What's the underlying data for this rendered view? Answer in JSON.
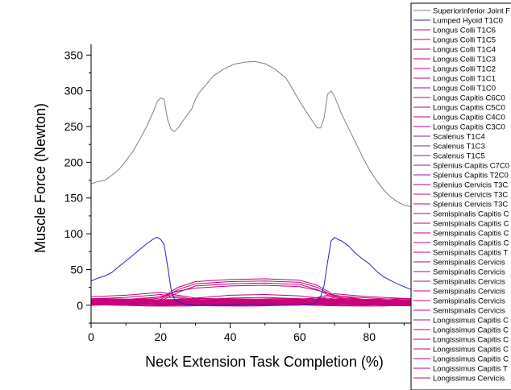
{
  "chart_data": {
    "type": "line",
    "xlabel": "Neck Extension Task Completion (%)",
    "ylabel": "Muscle Force (Newton)",
    "xlim": [
      0,
      92
    ],
    "ylim": [
      -25,
      365
    ],
    "xticks": [
      0,
      20,
      40,
      60,
      80
    ],
    "yticks": [
      0,
      50,
      100,
      150,
      200,
      250,
      300,
      350
    ],
    "grid": false,
    "legend_position": "right (clipped)",
    "colors": {
      "gray": "#808080",
      "blue": "#2020d0",
      "magenta": "#c8007a",
      "purple": "#7a2a8a"
    },
    "series": [
      {
        "name": "Superiorinferior Joint F",
        "color": "#808080",
        "x": [
          0,
          2,
          4,
          6,
          8,
          10,
          12,
          14,
          16,
          18,
          19,
          20,
          21,
          22,
          23,
          24,
          25,
          27,
          29,
          30,
          31,
          33,
          35,
          38,
          41,
          44,
          47,
          50,
          53,
          56,
          57,
          58,
          60,
          62,
          64,
          65,
          66,
          67,
          68,
          69,
          70,
          71,
          72,
          74,
          76,
          78,
          80,
          82,
          84,
          86,
          88,
          90,
          92
        ],
        "y": [
          170,
          173,
          175,
          182,
          190,
          202,
          215,
          232,
          250,
          272,
          285,
          290,
          288,
          260,
          246,
          243,
          248,
          262,
          275,
          288,
          297,
          308,
          320,
          330,
          337,
          340,
          341,
          338,
          330,
          318,
          310,
          302,
          285,
          270,
          255,
          248,
          248,
          262,
          295,
          300,
          292,
          280,
          268,
          248,
          228,
          208,
          190,
          175,
          162,
          152,
          145,
          140,
          138
        ]
      },
      {
        "name": "Lumped Hyoid T1C0",
        "color": "#2020d0",
        "x": [
          0,
          2,
          4,
          6,
          8,
          10,
          12,
          14,
          16,
          18,
          19,
          20,
          21,
          22,
          23,
          24,
          26,
          28,
          30,
          40,
          50,
          60,
          64,
          65,
          66,
          67,
          68,
          69,
          70,
          71,
          72,
          74,
          76,
          78,
          80,
          82,
          84,
          86,
          88,
          90,
          92
        ],
        "y": [
          34,
          38,
          41,
          46,
          54,
          62,
          70,
          78,
          86,
          93,
          95,
          92,
          85,
          55,
          22,
          8,
          3,
          1,
          0,
          0,
          0,
          0,
          2,
          5,
          12,
          28,
          60,
          90,
          95,
          92,
          90,
          83,
          73,
          65,
          58,
          48,
          40,
          35,
          30,
          26,
          22
        ]
      },
      {
        "name": "Longus Colli T1C6",
        "color": "#c8007a"
      },
      {
        "name": "Longus Colli T1C5",
        "color": "#c8007a"
      },
      {
        "name": "Longus Colli T1C4",
        "color": "#c8007a"
      },
      {
        "name": "Longus Colli T1C3",
        "color": "#c8007a"
      },
      {
        "name": "Longus Colli T1C2",
        "color": "#c8007a"
      },
      {
        "name": "Longus Colli T1C1",
        "color": "#c8007a"
      },
      {
        "name": "Longus Colli T1C0",
        "color": "#c8007a"
      },
      {
        "name": "Longus Capitis C6C0",
        "color": "#c8007a"
      },
      {
        "name": "Longus Capitis C5C0",
        "color": "#c8007a"
      },
      {
        "name": "Longus Capitis C4C0",
        "color": "#c8007a"
      },
      {
        "name": "Longus Capitis C3C0",
        "color": "#c8007a"
      },
      {
        "name": "Scalenus T1C4",
        "color": "#7a2a8a"
      },
      {
        "name": "Scalenus T1C3",
        "color": "#7a2a8a"
      },
      {
        "name": "Scalenus T1C5",
        "color": "#7a2a8a"
      },
      {
        "name": "Splenius Capitis C7C0",
        "color": "#7a2a8a"
      },
      {
        "name": "Splenius Capitis T2C0",
        "color": "#7a2a8a"
      },
      {
        "name": "Splenius Cervicis T3C",
        "color": "#c8007a"
      },
      {
        "name": "Splenius Cervicis T3C",
        "color": "#c8007a"
      },
      {
        "name": "Splenius Cervicis T3C",
        "color": "#c8007a"
      },
      {
        "name": "Semispinalis Capitis C",
        "color": "#c8007a"
      },
      {
        "name": "Semispinalis Capitis C",
        "color": "#c8007a"
      },
      {
        "name": "Semispinalis Capitis C",
        "color": "#c8007a"
      },
      {
        "name": "Semispinalis Capitis C",
        "color": "#c8007a"
      },
      {
        "name": "Semispinalis Capitis T",
        "color": "#c8007a"
      },
      {
        "name": "Semispinalis Cervicis",
        "color": "#c8007a"
      },
      {
        "name": "Semispinalis Cervicis",
        "color": "#c8007a"
      },
      {
        "name": "Semispinalis Cervicis",
        "color": "#c8007a"
      },
      {
        "name": "Semispinalis Cervicis",
        "color": "#c8007a"
      },
      {
        "name": "Semispinalis Cervicis",
        "color": "#c8007a"
      },
      {
        "name": "Semispinalis Cervicis",
        "color": "#c8007a"
      },
      {
        "name": "Longissimus Capitis C",
        "color": "#c8007a"
      },
      {
        "name": "Longissimus Capitis C",
        "color": "#c8007a"
      },
      {
        "name": "Longissimus Capitis C",
        "color": "#c8007a"
      },
      {
        "name": "Longissimus Capitis C",
        "color": "#c8007a"
      },
      {
        "name": "Longissimus Capitis C",
        "color": "#c8007a"
      },
      {
        "name": "Longissimus Capitis T",
        "color": "#c8007a"
      },
      {
        "name": "Longissimus Cervicis",
        "color": "#c8007a"
      }
    ],
    "magenta_curves": [
      {
        "x": [
          0,
          10,
          20,
          25,
          30,
          40,
          50,
          60,
          65,
          70,
          80,
          92
        ],
        "y": [
          2,
          4,
          8,
          22,
          30,
          33,
          34,
          32,
          25,
          12,
          5,
          3
        ]
      },
      {
        "x": [
          0,
          10,
          20,
          25,
          30,
          40,
          50,
          60,
          65,
          70,
          80,
          92
        ],
        "y": [
          3,
          5,
          10,
          25,
          33,
          36,
          37,
          35,
          28,
          14,
          6,
          4
        ]
      },
      {
        "x": [
          0,
          10,
          20,
          25,
          30,
          40,
          50,
          60,
          65,
          70,
          80,
          92
        ],
        "y": [
          1,
          3,
          6,
          18,
          27,
          30,
          31,
          29,
          22,
          10,
          4,
          2
        ]
      },
      {
        "x": [
          0,
          10,
          20,
          25,
          30,
          40,
          50,
          60,
          65,
          70,
          80,
          92
        ],
        "y": [
          4,
          6,
          12,
          20,
          24,
          27,
          28,
          26,
          21,
          14,
          7,
          5
        ]
      },
      {
        "x": [
          0,
          10,
          20,
          25,
          30,
          40,
          50,
          60,
          65,
          70,
          80,
          92
        ],
        "y": [
          12,
          14,
          18,
          14,
          10,
          8,
          8,
          8,
          11,
          16,
          12,
          9
        ]
      },
      {
        "x": [
          0,
          10,
          20,
          25,
          30,
          40,
          50,
          60,
          65,
          70,
          80,
          92
        ],
        "y": [
          9,
          11,
          15,
          12,
          8,
          6,
          6,
          6,
          9,
          13,
          10,
          7
        ]
      },
      {
        "x": [
          0,
          10,
          20,
          25,
          30,
          40,
          50,
          60,
          65,
          70,
          80,
          92
        ],
        "y": [
          6,
          8,
          12,
          10,
          7,
          5,
          5,
          5,
          7,
          10,
          8,
          6
        ]
      },
      {
        "x": [
          0,
          10,
          20,
          30,
          40,
          50,
          60,
          70,
          80,
          92
        ],
        "y": [
          2,
          3,
          4,
          10,
          14,
          15,
          13,
          8,
          4,
          3
        ]
      },
      {
        "x": [
          0,
          10,
          20,
          30,
          40,
          50,
          60,
          70,
          80,
          92
        ],
        "y": [
          1,
          2,
          3,
          7,
          10,
          11,
          9,
          5,
          3,
          2
        ]
      },
      {
        "x": [
          0,
          10,
          20,
          30,
          40,
          50,
          60,
          70,
          80,
          92
        ],
        "y": [
          5,
          6,
          8,
          6,
          5,
          5,
          5,
          7,
          6,
          5
        ]
      },
      {
        "x": [
          0,
          10,
          20,
          30,
          40,
          50,
          60,
          70,
          80,
          92
        ],
        "y": [
          3,
          4,
          6,
          5,
          4,
          4,
          4,
          5,
          4,
          3
        ]
      },
      {
        "x": [
          0,
          10,
          20,
          30,
          40,
          50,
          60,
          70,
          80,
          92
        ],
        "y": [
          0,
          1,
          2,
          2,
          2,
          2,
          2,
          2,
          1,
          1
        ]
      }
    ]
  }
}
